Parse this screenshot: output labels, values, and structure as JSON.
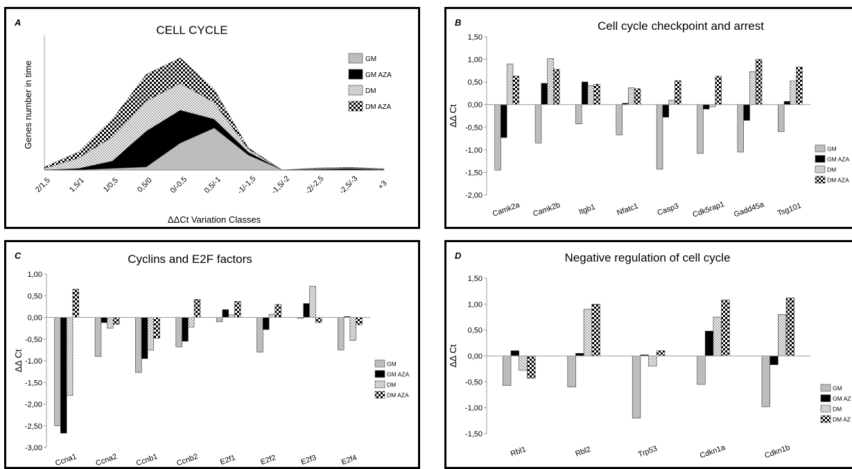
{
  "chart_data": [
    {
      "panel": "A",
      "type": "area",
      "title": "CELL CYCLE",
      "xlabel": "ΔΔCt Variation Classes",
      "ylabel": "Genes number in time",
      "categories": [
        "2/1,5",
        "1,5/1",
        "1/0,5",
        "0,5/0",
        "0/-0,5",
        "0,5/-1",
        "-1/-1,5",
        "-1,5/-2",
        "-2/-2,5",
        "-2,5/-3",
        "+3"
      ],
      "stacked": true,
      "series": [
        {
          "name": "GM",
          "values": [
            0,
            0,
            1,
            2,
            18,
            28,
            10,
            0,
            0,
            0,
            0
          ]
        },
        {
          "name": "GM AZA",
          "values": [
            0,
            1,
            5,
            24,
            22,
            6,
            2,
            0,
            0.5,
            1,
            0.3
          ]
        },
        {
          "name": "DM",
          "values": [
            1,
            7,
            16,
            20,
            18,
            11,
            2,
            0,
            0.5,
            0.5,
            0.3
          ]
        },
        {
          "name": "DM AZA",
          "values": [
            1,
            4,
            12,
            18,
            17,
            9,
            1,
            0,
            0.3,
            0.3,
            0.2
          ]
        }
      ],
      "ylim": [
        0,
        90
      ],
      "legend": "top-right"
    },
    {
      "panel": "B",
      "type": "bar",
      "title": "Cell cycle checkpoint and arrest",
      "ylabel": "ΔΔ Ct",
      "categories": [
        "Camk2a",
        "Camk2b",
        "Itgb1",
        "Nfatc1",
        "Casp3",
        "Cdk5rap1",
        "Gadd45a",
        "Tsg101"
      ],
      "series": [
        {
          "name": "GM",
          "values": [
            -1.45,
            -0.85,
            -0.43,
            -0.67,
            -1.43,
            -1.08,
            -1.05,
            -0.6
          ]
        },
        {
          "name": "GM AZA",
          "values": [
            -0.73,
            0.47,
            0.5,
            0.03,
            -0.28,
            -0.1,
            -0.35,
            0.07
          ]
        },
        {
          "name": "DM",
          "values": [
            0.9,
            1.02,
            0.42,
            0.37,
            0.1,
            -0.05,
            0.73,
            0.52
          ]
        },
        {
          "name": "DM AZA",
          "values": [
            0.63,
            0.78,
            0.45,
            0.35,
            0.53,
            0.63,
            1.0,
            0.83
          ]
        }
      ],
      "yticks": [
        "1,50",
        "1,00",
        "0,50",
        "0,00",
        "-0,50",
        "-1,00",
        "-1,50",
        "-2,00"
      ],
      "ylim": [
        -2,
        1.5
      ],
      "legend": "right",
      "legend_labels": [
        "GM",
        "GM AZA",
        "DM",
        "DM AZA"
      ]
    },
    {
      "panel": "C",
      "type": "bar",
      "title": "Cyclins and E2F factors",
      "ylabel": "ΔΔ Ct",
      "categories": [
        "Ccna1",
        "Ccna2",
        "Ccnb1",
        "Ccnb2",
        "E2f1",
        "E2f2",
        "E2f3",
        "E2f4"
      ],
      "series": [
        {
          "name": "GM",
          "values": [
            -2.5,
            -0.9,
            -1.27,
            -0.68,
            -0.1,
            -0.8,
            -0.02,
            -0.75
          ]
        },
        {
          "name": "GM AZA",
          "values": [
            -2.67,
            -0.12,
            -0.95,
            -0.55,
            0.18,
            -0.28,
            0.32,
            0.02
          ]
        },
        {
          "name": "DM",
          "values": [
            -1.8,
            -0.25,
            -0.75,
            -0.22,
            0.06,
            0.07,
            0.72,
            -0.53
          ]
        },
        {
          "name": "DM AZA",
          "values": [
            0.65,
            -0.16,
            -0.48,
            0.42,
            0.37,
            0.3,
            -0.12,
            -0.17
          ]
        }
      ],
      "yticks": [
        "1,00",
        "0,50",
        "0,00",
        "-0,50",
        "-1,00",
        "-1,50",
        "-2,00",
        "-2,50",
        "-3,00"
      ],
      "ylim": [
        -3,
        1
      ],
      "legend": "right",
      "legend_labels": [
        "GM",
        "GM AZA",
        "DM",
        "DM AZA"
      ]
    },
    {
      "panel": "D",
      "type": "bar",
      "title": "Negative regulation of cell cycle",
      "ylabel": "ΔΔ Ct",
      "categories": [
        "Rbl1",
        "Rbl2",
        "Trp53",
        "Cdkn1a",
        "Cdkn1b"
      ],
      "series": [
        {
          "name": "GM",
          "values": [
            -0.57,
            -0.6,
            -1.2,
            -0.55,
            -0.98
          ]
        },
        {
          "name": "GM AZA",
          "values": [
            0.1,
            0.05,
            0.02,
            0.48,
            -0.17
          ]
        },
        {
          "name": "DM",
          "values": [
            -0.28,
            0.9,
            -0.2,
            0.75,
            0.8
          ]
        },
        {
          "name": "DM AZA",
          "values": [
            -0.43,
            1.0,
            0.1,
            1.08,
            1.12
          ]
        }
      ],
      "yticks": [
        "1,50",
        "1,00",
        "0,50",
        "0,00",
        "-0,50",
        "-1,00",
        "-1,50"
      ],
      "ylim": [
        -1.5,
        1.5
      ],
      "legend": "right",
      "legend_labels": [
        "GM",
        "GM AZ",
        "DM",
        "DM AZ"
      ]
    }
  ]
}
